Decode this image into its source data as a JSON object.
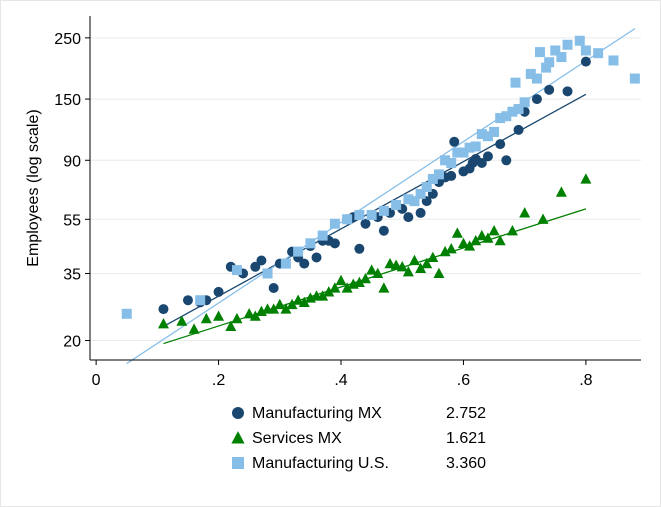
{
  "chart_data": {
    "type": "scatter",
    "title": "",
    "xlabel": "",
    "ylabel": "Employees (log scale)",
    "y_scale": "log",
    "xlim": [
      -0.01,
      0.89
    ],
    "ylim": [
      17,
      300
    ],
    "grid": "horizontal",
    "legend_position": "bottom",
    "x_ticks": [
      {
        "value": 0,
        "label": "0"
      },
      {
        "value": 0.2,
        "label": ".2"
      },
      {
        "value": 0.4,
        "label": ".4"
      },
      {
        "value": 0.6,
        "label": ".6"
      },
      {
        "value": 0.8,
        "label": ".8"
      }
    ],
    "y_ticks": [
      {
        "value": 20,
        "label": "20"
      },
      {
        "value": 35,
        "label": "35"
      },
      {
        "value": 55,
        "label": "55"
      },
      {
        "value": 90,
        "label": "90"
      },
      {
        "value": 150,
        "label": "150"
      },
      {
        "value": 250,
        "label": "250"
      }
    ],
    "series": [
      {
        "name": "Manufacturing MX",
        "value_label": "2.752",
        "marker": "circle",
        "color": "#1a476f",
        "fit_line": {
          "x": [
            0.11,
            0.8
          ],
          "y": [
            22.5,
            156
          ]
        },
        "points": [
          [
            0.11,
            26
          ],
          [
            0.15,
            28
          ],
          [
            0.17,
            27.5
          ],
          [
            0.18,
            28
          ],
          [
            0.2,
            30
          ],
          [
            0.22,
            37
          ],
          [
            0.24,
            35
          ],
          [
            0.26,
            37
          ],
          [
            0.27,
            39
          ],
          [
            0.29,
            31
          ],
          [
            0.3,
            38
          ],
          [
            0.32,
            42
          ],
          [
            0.33,
            40
          ],
          [
            0.34,
            38
          ],
          [
            0.35,
            44
          ],
          [
            0.36,
            40
          ],
          [
            0.37,
            46
          ],
          [
            0.38,
            46
          ],
          [
            0.39,
            45
          ],
          [
            0.41,
            55
          ],
          [
            0.42,
            56
          ],
          [
            0.43,
            43
          ],
          [
            0.44,
            53
          ],
          [
            0.46,
            56
          ],
          [
            0.47,
            50
          ],
          [
            0.48,
            58
          ],
          [
            0.5,
            60
          ],
          [
            0.51,
            56
          ],
          [
            0.53,
            58
          ],
          [
            0.54,
            64
          ],
          [
            0.55,
            68
          ],
          [
            0.56,
            75
          ],
          [
            0.57,
            78
          ],
          [
            0.58,
            79
          ],
          [
            0.585,
            105
          ],
          [
            0.6,
            82
          ],
          [
            0.61,
            84
          ],
          [
            0.615,
            88
          ],
          [
            0.62,
            91
          ],
          [
            0.63,
            88
          ],
          [
            0.64,
            93
          ],
          [
            0.66,
            103
          ],
          [
            0.67,
            90
          ],
          [
            0.69,
            116
          ],
          [
            0.7,
            135
          ],
          [
            0.72,
            150
          ],
          [
            0.74,
            162
          ],
          [
            0.77,
            160
          ],
          [
            0.8,
            205
          ]
        ]
      },
      {
        "name": "Services MX",
        "value_label": "1.621",
        "marker": "triangle",
        "color": "#008000",
        "fit_line": {
          "x": [
            0.11,
            0.8
          ],
          "y": [
            19.5,
            60
          ]
        },
        "points": [
          [
            0.11,
            23
          ],
          [
            0.14,
            23.5
          ],
          [
            0.16,
            22
          ],
          [
            0.18,
            24
          ],
          [
            0.2,
            24.5
          ],
          [
            0.22,
            22.5
          ],
          [
            0.23,
            24
          ],
          [
            0.25,
            25
          ],
          [
            0.26,
            24.5
          ],
          [
            0.27,
            25.5
          ],
          [
            0.28,
            26
          ],
          [
            0.29,
            26
          ],
          [
            0.3,
            27
          ],
          [
            0.31,
            26
          ],
          [
            0.32,
            27
          ],
          [
            0.33,
            28
          ],
          [
            0.34,
            27.5
          ],
          [
            0.35,
            28.5
          ],
          [
            0.36,
            29
          ],
          [
            0.37,
            29
          ],
          [
            0.38,
            30
          ],
          [
            0.39,
            31
          ],
          [
            0.4,
            33
          ],
          [
            0.41,
            31
          ],
          [
            0.42,
            32
          ],
          [
            0.43,
            32.5
          ],
          [
            0.44,
            33.5
          ],
          [
            0.45,
            36
          ],
          [
            0.46,
            35
          ],
          [
            0.47,
            31
          ],
          [
            0.48,
            38
          ],
          [
            0.49,
            37.5
          ],
          [
            0.5,
            37
          ],
          [
            0.51,
            35.5
          ],
          [
            0.52,
            39
          ],
          [
            0.53,
            36.5
          ],
          [
            0.54,
            38
          ],
          [
            0.55,
            40
          ],
          [
            0.56,
            35
          ],
          [
            0.57,
            42
          ],
          [
            0.58,
            43
          ],
          [
            0.59,
            49
          ],
          [
            0.6,
            45
          ],
          [
            0.61,
            44
          ],
          [
            0.62,
            46
          ],
          [
            0.63,
            48
          ],
          [
            0.64,
            47
          ],
          [
            0.65,
            50
          ],
          [
            0.66,
            46
          ],
          [
            0.68,
            50
          ],
          [
            0.7,
            58
          ],
          [
            0.73,
            55
          ],
          [
            0.76,
            69
          ],
          [
            0.8,
            77
          ]
        ]
      },
      {
        "name": "Manufacturing U.S.",
        "value_label": "3.360",
        "marker": "square",
        "color": "#86bee8",
        "fit_line": {
          "x": [
            0.05,
            0.88
          ],
          "y": [
            16.5,
            270
          ]
        },
        "points": [
          [
            0.05,
            25
          ],
          [
            0.17,
            28
          ],
          [
            0.23,
            36
          ],
          [
            0.28,
            35
          ],
          [
            0.31,
            38
          ],
          [
            0.33,
            42
          ],
          [
            0.35,
            45
          ],
          [
            0.37,
            48
          ],
          [
            0.39,
            53
          ],
          [
            0.41,
            55
          ],
          [
            0.43,
            57
          ],
          [
            0.45,
            57
          ],
          [
            0.47,
            59
          ],
          [
            0.49,
            62
          ],
          [
            0.51,
            65
          ],
          [
            0.52,
            64
          ],
          [
            0.53,
            68
          ],
          [
            0.54,
            72
          ],
          [
            0.55,
            77
          ],
          [
            0.56,
            80
          ],
          [
            0.57,
            90
          ],
          [
            0.58,
            88
          ],
          [
            0.59,
            96
          ],
          [
            0.6,
            96
          ],
          [
            0.61,
            100
          ],
          [
            0.62,
            101
          ],
          [
            0.63,
            112
          ],
          [
            0.64,
            110
          ],
          [
            0.65,
            114
          ],
          [
            0.66,
            128
          ],
          [
            0.67,
            130
          ],
          [
            0.68,
            135
          ],
          [
            0.685,
            172
          ],
          [
            0.69,
            138
          ],
          [
            0.7,
            146
          ],
          [
            0.71,
            185
          ],
          [
            0.72,
            178
          ],
          [
            0.725,
            222
          ],
          [
            0.735,
            195
          ],
          [
            0.74,
            204
          ],
          [
            0.75,
            225
          ],
          [
            0.76,
            213
          ],
          [
            0.77,
            236
          ],
          [
            0.79,
            244
          ],
          [
            0.8,
            225
          ],
          [
            0.82,
            220
          ],
          [
            0.845,
            207
          ],
          [
            0.88,
            178
          ]
        ]
      }
    ]
  }
}
